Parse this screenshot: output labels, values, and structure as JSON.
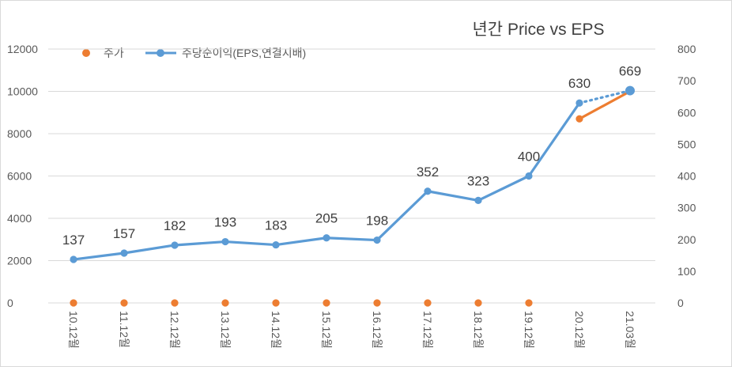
{
  "chart_data": {
    "type": "line",
    "title": "년간 Price vs EPS",
    "categories": [
      "10.12월",
      "11.12월",
      "12.12월",
      "13.12월",
      "14.12월",
      "15.12월",
      "16.12월",
      "17.12월",
      "18.12월",
      "19.12월",
      "20.12월",
      "21.03월"
    ],
    "y_left": {
      "ticks": [
        "0",
        "2000",
        "4000",
        "6000",
        "8000",
        "10000",
        "12000"
      ],
      "ylim": [
        0,
        12000
      ]
    },
    "y_right": {
      "ticks": [
        "0",
        "100",
        "200",
        "300",
        "400",
        "500",
        "600",
        "700",
        "800"
      ],
      "ylim": [
        0,
        800
      ]
    },
    "series": [
      {
        "name": "주가",
        "axis": "left",
        "color": "#ED7D31",
        "marker": "circle",
        "values": [
          0,
          0,
          0,
          0,
          0,
          0,
          0,
          0,
          0,
          0,
          8700,
          10000
        ],
        "connected_from_index": 10
      },
      {
        "name": "주당순이익(EPS,연결지배)",
        "axis": "right",
        "color": "#5B9BD5",
        "marker": "circle",
        "values": [
          137,
          157,
          182,
          193,
          183,
          205,
          198,
          352,
          323,
          400,
          630,
          669
        ],
        "labels": [
          "137",
          "157",
          "182",
          "193",
          "183",
          "205",
          "198",
          "352",
          "323",
          "400",
          "630",
          "669"
        ],
        "dotted_from_index": 10
      }
    ],
    "legend": "top-left",
    "grid": true
  }
}
